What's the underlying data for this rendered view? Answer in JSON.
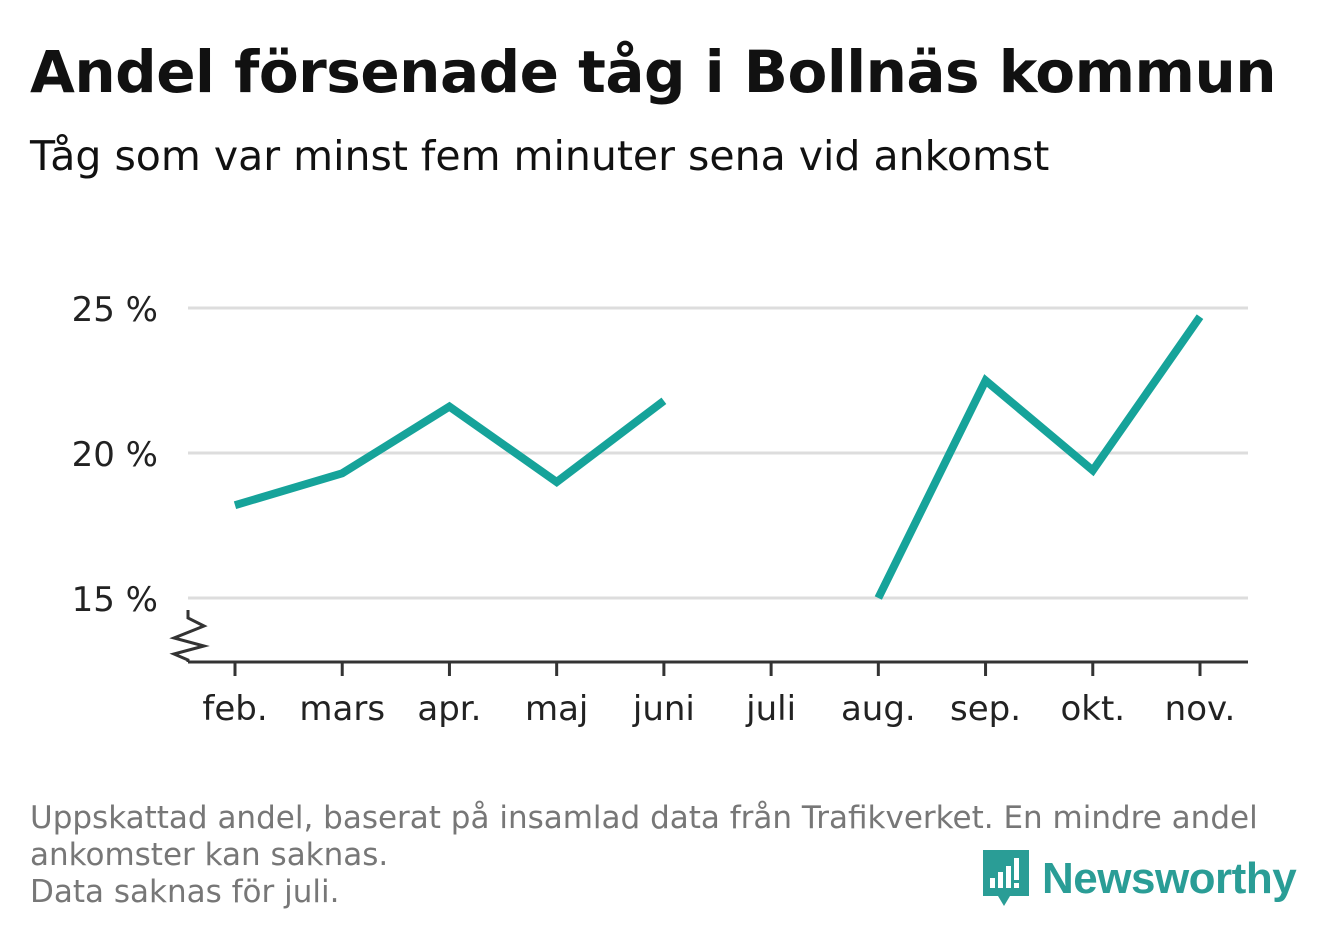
{
  "title": "Andel försenade tåg i Bollnäs kommun",
  "subtitle": "Tåg som var minst fem minuter sena vid ankomst",
  "footnote": {
    "line1": "Uppskattad andel, baserat på insamlad data från Trafikverket. En mindre andel",
    "line2": "ankomster kan saknas.",
    "line3": "Data saknas för juli."
  },
  "brand": {
    "name": "Newsworthy",
    "icon": "newsworthy-logo-icon"
  },
  "colors": {
    "line": "#16a39a",
    "grid": "#dddddd",
    "axis": "#333333",
    "text": "#222222",
    "footnote": "#777777"
  },
  "chart_data": {
    "type": "line",
    "title": "Andel försenade tåg i Bollnäs kommun",
    "subtitle": "Tåg som var minst fem minuter sena vid ankomst",
    "xlabel": "",
    "ylabel": "",
    "categories": [
      "feb.",
      "mars",
      "apr.",
      "maj",
      "juni",
      "juli",
      "aug.",
      "sep.",
      "okt.",
      "nov."
    ],
    "series": [
      {
        "values": [
          18.2,
          19.3,
          21.6,
          19.0,
          21.8,
          null,
          15.0,
          22.5,
          19.4,
          24.7
        ]
      }
    ],
    "yticks": [
      15,
      20,
      25
    ],
    "ytick_labels": [
      "15 %",
      "20 %",
      "25 %"
    ],
    "ylim": [
      12.8,
      25
    ],
    "y_axis_break": true,
    "grid": true,
    "legend": "none"
  }
}
